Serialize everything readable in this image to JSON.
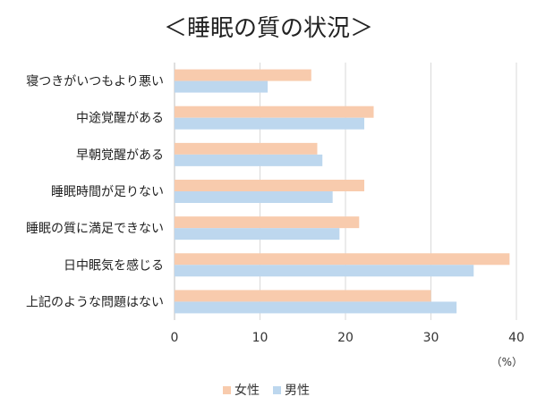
{
  "chart_data": {
    "type": "bar",
    "orientation": "horizontal",
    "title": "＜睡眠の質の状況＞",
    "categories": [
      "寝つきがいつもより悪い",
      "中途覚醒がある",
      "早朝覚醒がある",
      "睡眠時間が足りない",
      "睡眠の質に満足できない",
      "日中眠気を感じる",
      "上記のような問題はない"
    ],
    "series": [
      {
        "name": "女性",
        "values": [
          16,
          23.3,
          16.7,
          22.2,
          21.6,
          39.2,
          30
        ],
        "color": "#F8CBAD"
      },
      {
        "name": "男性",
        "values": [
          10.9,
          22.2,
          17.3,
          18.5,
          19.3,
          35,
          33
        ],
        "color": "#BDD7EE"
      }
    ],
    "xlim": [
      0,
      40
    ],
    "xticks": [
      0,
      10,
      20,
      30,
      40
    ],
    "unit": "（%）",
    "grid": true,
    "legend_position": "bottom"
  }
}
